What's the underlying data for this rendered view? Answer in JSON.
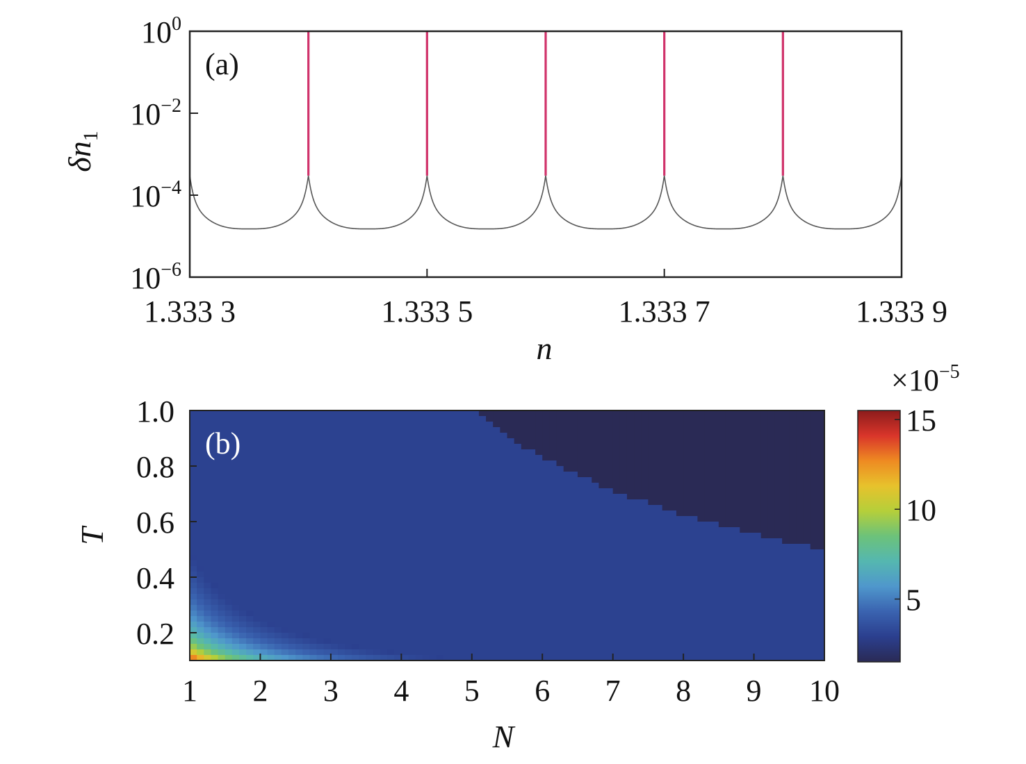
{
  "chart_data": [
    {
      "panel": "(a)",
      "type": "line",
      "xlabel": "n",
      "ylabel": "δn1",
      "ylabel_main": "δn",
      "ylabel_sub": "1",
      "xlim": [
        1.3333,
        1.3339
      ],
      "ylim_log10": [
        -6,
        0
      ],
      "yscale": "log",
      "x_ticks": [
        1.3333,
        1.3335,
        1.3337,
        1.3339
      ],
      "x_tick_labels": [
        "1.333 3",
        "1.333 5",
        "1.333 7",
        "1.333 9"
      ],
      "y_ticks_log10": [
        0,
        -2,
        -4,
        -6
      ],
      "y_tick_labels": [
        {
          "base": "10",
          "exp": "0"
        },
        {
          "base": "10",
          "exp": "−2"
        },
        {
          "base": "10",
          "exp": "−4"
        },
        {
          "base": "10",
          "exp": "−6"
        }
      ],
      "series": [
        {
          "color": "#555555",
          "description_x_period": 0.0001,
          "segments_x": [
            [
              1.3333,
              1.3334
            ],
            [
              1.3334,
              1.3335
            ],
            [
              1.3335,
              1.3336
            ],
            [
              1.3336,
              1.3337
            ],
            [
              1.3337,
              1.3338
            ],
            [
              1.3338,
              1.3339
            ]
          ],
          "min_value": 1.5e-05,
          "cusp_value": 0.0003
        }
      ],
      "spikes": {
        "color": "#d0326a",
        "x": [
          1.3334,
          1.3335,
          1.3336,
          1.3337,
          1.3338
        ],
        "from_value": 0.0003,
        "to_value": 1
      },
      "grid": false
    },
    {
      "panel": "(b)",
      "type": "heatmap",
      "xlabel": "N",
      "ylabel": "T",
      "xlim": [
        1,
        10
      ],
      "ylim": [
        0.1,
        1.0
      ],
      "x_ticks": [
        1,
        2,
        3,
        4,
        5,
        6,
        7,
        8,
        9,
        10
      ],
      "x_tick_labels": [
        "1",
        "2",
        "3",
        "4",
        "5",
        "6",
        "7",
        "8",
        "9",
        "10"
      ],
      "y_ticks": [
        0.2,
        0.4,
        0.6,
        0.8,
        1.0
      ],
      "y_tick_labels": [
        "0.2",
        "0.4",
        "0.6",
        "0.8",
        "1.0"
      ],
      "colorbar": {
        "multiplier": {
          "base": "×10",
          "exp": "−5"
        },
        "range": [
          1.5,
          15.5
        ],
        "ticks": [
          5,
          10,
          15
        ],
        "tick_labels": [
          "5",
          "10",
          "15"
        ],
        "colors": [
          "#2a2a55",
          "#2b3f8e",
          "#3a63b0",
          "#4f97cc",
          "#55b7b0",
          "#6cc27a",
          "#b5cf3a",
          "#e7c22c",
          "#ee8a22",
          "#d9352a",
          "#8c1c1c"
        ]
      },
      "z_model": "z ≈ 1.47 / (N · T) (×10⁻⁵), clipped to colorbar range",
      "grid": false
    }
  ]
}
